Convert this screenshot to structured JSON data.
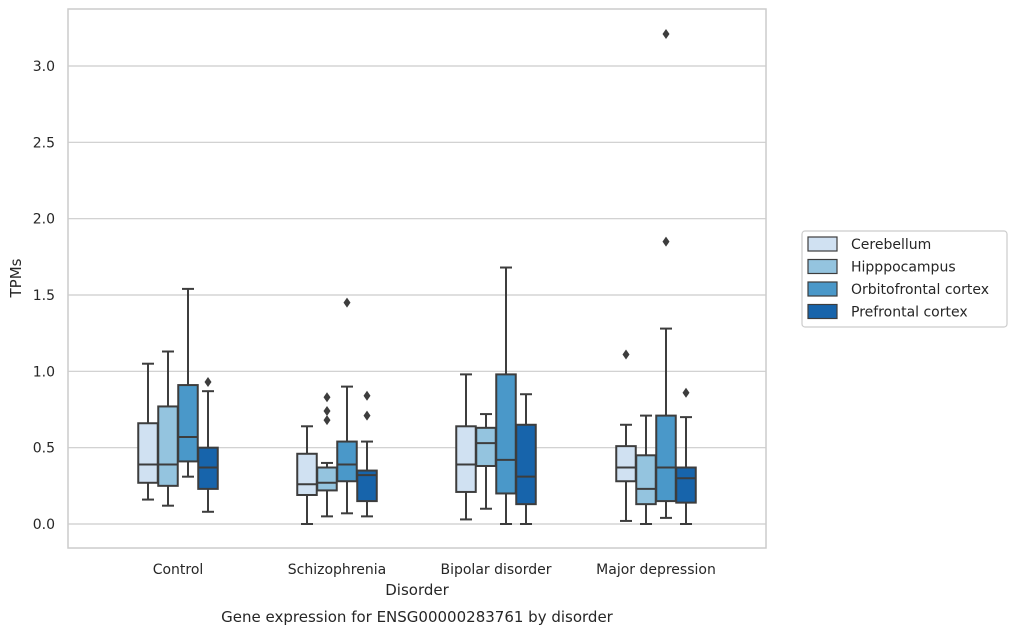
{
  "chart_data": {
    "type": "box",
    "title": "",
    "caption": "Gene expression for ENSG00000283761 by disorder",
    "xlabel": "Disorder",
    "ylabel": "TPMs",
    "ylim": [
      -0.15,
      3.38
    ],
    "yticks": [
      0.0,
      0.5,
      1.0,
      1.5,
      2.0,
      2.5,
      3.0
    ],
    "ytick_labels": [
      "0.0",
      "0.5",
      "1.0",
      "1.5",
      "2.0",
      "2.5",
      "3.0"
    ],
    "grid": "horizontal",
    "legend_position": "right",
    "categories": [
      "Control",
      "Schizophrenia",
      "Bipolar disorder",
      "Major depression"
    ],
    "series": [
      {
        "name": "Cerebellum",
        "color": "#d0e1f2",
        "boxes": [
          {
            "whislo": 0.16,
            "q1": 0.27,
            "med": 0.39,
            "q3": 0.66,
            "whishi": 1.05,
            "fliers": []
          },
          {
            "whislo": 0.0,
            "q1": 0.19,
            "med": 0.26,
            "q3": 0.46,
            "whishi": 0.64,
            "fliers": []
          },
          {
            "whislo": 0.03,
            "q1": 0.21,
            "med": 0.39,
            "q3": 0.64,
            "whishi": 0.98,
            "fliers": []
          },
          {
            "whislo": 0.02,
            "q1": 0.28,
            "med": 0.37,
            "q3": 0.51,
            "whishi": 0.65,
            "fliers": [
              1.11
            ]
          }
        ]
      },
      {
        "name": "Hipppocampus",
        "color": "#94c4df",
        "boxes": [
          {
            "whislo": 0.12,
            "q1": 0.25,
            "med": 0.39,
            "q3": 0.77,
            "whishi": 1.13,
            "fliers": []
          },
          {
            "whislo": 0.05,
            "q1": 0.22,
            "med": 0.27,
            "q3": 0.37,
            "whishi": 0.4,
            "fliers": [
              0.68,
              0.74,
              0.83
            ]
          },
          {
            "whislo": 0.1,
            "q1": 0.38,
            "med": 0.53,
            "q3": 0.63,
            "whishi": 0.72,
            "fliers": []
          },
          {
            "whislo": 0.0,
            "q1": 0.13,
            "med": 0.23,
            "q3": 0.45,
            "whishi": 0.71,
            "fliers": []
          }
        ]
      },
      {
        "name": "Orbitofrontal cortex",
        "color": "#4a98c9",
        "boxes": [
          {
            "whislo": 0.31,
            "q1": 0.41,
            "med": 0.57,
            "q3": 0.91,
            "whishi": 1.54,
            "fliers": []
          },
          {
            "whislo": 0.07,
            "q1": 0.28,
            "med": 0.39,
            "q3": 0.54,
            "whishi": 0.9,
            "fliers": [
              1.45
            ]
          },
          {
            "whislo": 0.0,
            "q1": 0.2,
            "med": 0.42,
            "q3": 0.98,
            "whishi": 1.68,
            "fliers": []
          },
          {
            "whislo": 0.04,
            "q1": 0.15,
            "med": 0.37,
            "q3": 0.71,
            "whishi": 1.28,
            "fliers": [
              1.85,
              3.21
            ]
          }
        ]
      },
      {
        "name": "Prefrontal cortex",
        "color": "#1764ab",
        "boxes": [
          {
            "whislo": 0.08,
            "q1": 0.23,
            "med": 0.37,
            "q3": 0.5,
            "whishi": 0.87,
            "fliers": [
              0.93
            ]
          },
          {
            "whislo": 0.05,
            "q1": 0.15,
            "med": 0.32,
            "q3": 0.35,
            "whishi": 0.54,
            "fliers": [
              0.71,
              0.84
            ]
          },
          {
            "whislo": 0.0,
            "q1": 0.13,
            "med": 0.31,
            "q3": 0.65,
            "whishi": 0.85,
            "fliers": []
          },
          {
            "whislo": 0.0,
            "q1": 0.14,
            "med": 0.3,
            "q3": 0.37,
            "whishi": 0.7,
            "fliers": [
              0.86
            ]
          }
        ]
      }
    ]
  }
}
